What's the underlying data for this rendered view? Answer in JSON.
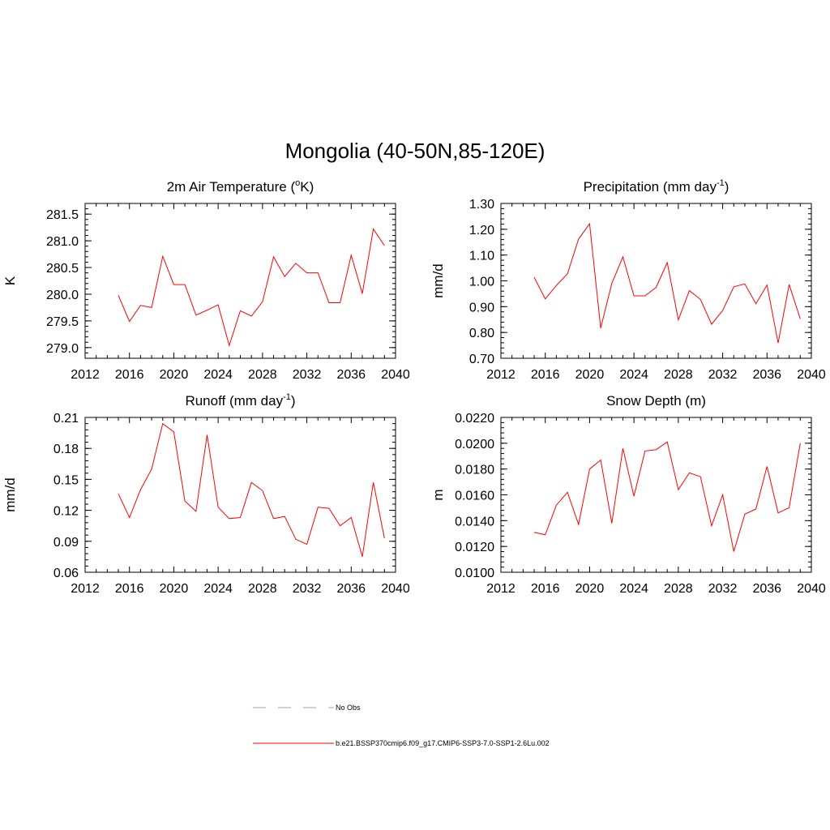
{
  "figure_title": "Mongolia (40-50N,85-120E)",
  "legend": {
    "items": [
      {
        "label": "No Obs",
        "color": "#9999dd",
        "dash": true
      },
      {
        "label": "b.e21.BSSP370cmip6.f09_g17.CMIP6-SSP3-7.0-SSP1-2.6Lu.002",
        "color": "#ff0000",
        "dash": false
      }
    ]
  },
  "chart_data": [
    {
      "type": "line",
      "title": "2m Air Temperature (°K)",
      "title_parts": {
        "main": "2m Air Temperature (",
        "sup": "o",
        "tail": "K)"
      },
      "ylabel": "K",
      "xlim": [
        2012,
        2040
      ],
      "ylim": [
        278.8,
        281.7
      ],
      "xticks": [
        2012,
        2016,
        2020,
        2024,
        2028,
        2032,
        2036,
        2040
      ],
      "xtick_labels": [
        "2012",
        "2016",
        "2020",
        "2024",
        "2028",
        "2032",
        "2036",
        "2040"
      ],
      "yticks": [
        279.0,
        279.5,
        280.0,
        280.5,
        281.0,
        281.5
      ],
      "ytick_labels": [
        "279.0",
        "279.5",
        "280.0",
        "280.5",
        "281.0",
        "281.5"
      ],
      "series": [
        {
          "color": "#ff0000",
          "x": [
            2015,
            2016,
            2017,
            2018,
            2019,
            2020,
            2021,
            2022,
            2023,
            2024,
            2025,
            2026,
            2027,
            2028,
            2029,
            2030,
            2031,
            2032,
            2033,
            2034,
            2035,
            2036,
            2037,
            2038,
            2039
          ],
          "values": [
            279.98,
            279.49,
            279.79,
            279.75,
            280.71,
            280.18,
            280.18,
            279.61,
            279.7,
            279.8,
            279.04,
            279.69,
            279.59,
            279.86,
            280.7,
            280.33,
            280.58,
            280.4,
            280.4,
            279.84,
            279.84,
            280.73,
            280.01,
            281.22,
            280.91
          ]
        }
      ]
    },
    {
      "type": "line",
      "title": "Precipitation (mm day-1)",
      "title_parts": {
        "main": "Precipitation (mm day",
        "sup": "-1",
        "tail": ")"
      },
      "ylabel": "mm/d",
      "xlim": [
        2012,
        2040
      ],
      "ylim": [
        0.7,
        1.3
      ],
      "xticks": [
        2012,
        2016,
        2020,
        2024,
        2028,
        2032,
        2036,
        2040
      ],
      "xtick_labels": [
        "2012",
        "2016",
        "2020",
        "2024",
        "2028",
        "2032",
        "2036",
        "2040"
      ],
      "yticks": [
        0.7,
        0.8,
        0.9,
        1.0,
        1.1,
        1.2,
        1.3
      ],
      "ytick_labels": [
        "0.70",
        "0.80",
        "0.90",
        "1.00",
        "1.10",
        "1.20",
        "1.30"
      ],
      "series": [
        {
          "color": "#ff0000",
          "x": [
            2015,
            2016,
            2017,
            2018,
            2019,
            2020,
            2021,
            2022,
            2023,
            2024,
            2025,
            2026,
            2027,
            2028,
            2029,
            2030,
            2031,
            2032,
            2033,
            2034,
            2035,
            2036,
            2037,
            2038,
            2039
          ],
          "values": [
            1.014,
            0.93,
            0.982,
            1.027,
            1.162,
            1.221,
            0.817,
            0.99,
            1.093,
            0.942,
            0.942,
            0.975,
            1.071,
            0.849,
            0.962,
            0.928,
            0.832,
            0.885,
            0.977,
            0.988,
            0.911,
            0.984,
            0.759,
            0.986,
            0.853
          ]
        }
      ]
    },
    {
      "type": "line",
      "title": "Runoff (mm day-1)",
      "title_parts": {
        "main": "Runoff (mm day",
        "sup": "-1",
        "tail": ")"
      },
      "ylabel": "mm/d",
      "xlim": [
        2012,
        2040
      ],
      "ylim": [
        0.06,
        0.21
      ],
      "xticks": [
        2012,
        2016,
        2020,
        2024,
        2028,
        2032,
        2036,
        2040
      ],
      "xtick_labels": [
        "2012",
        "2016",
        "2020",
        "2024",
        "2028",
        "2032",
        "2036",
        "2040"
      ],
      "yticks": [
        0.06,
        0.09,
        0.12,
        0.15,
        0.18,
        0.21
      ],
      "ytick_labels": [
        "0.06",
        "0.09",
        "0.12",
        "0.15",
        "0.18",
        "0.21"
      ],
      "series": [
        {
          "color": "#ff0000",
          "x": [
            2015,
            2016,
            2017,
            2018,
            2019,
            2020,
            2021,
            2022,
            2023,
            2024,
            2025,
            2026,
            2027,
            2028,
            2029,
            2030,
            2031,
            2032,
            2033,
            2034,
            2035,
            2036,
            2037,
            2038,
            2039
          ],
          "values": [
            0.136,
            0.113,
            0.14,
            0.16,
            0.204,
            0.196,
            0.129,
            0.119,
            0.193,
            0.123,
            0.112,
            0.113,
            0.147,
            0.139,
            0.112,
            0.114,
            0.092,
            0.087,
            0.123,
            0.122,
            0.105,
            0.113,
            0.075,
            0.147,
            0.093
          ]
        }
      ]
    },
    {
      "type": "line",
      "title": "Snow Depth (m)",
      "title_parts": {
        "main": "Snow Depth (m)",
        "sup": "",
        "tail": ""
      },
      "ylabel": "m",
      "xlim": [
        2012,
        2040
      ],
      "ylim": [
        0.01,
        0.022
      ],
      "xticks": [
        2012,
        2016,
        2020,
        2024,
        2028,
        2032,
        2036,
        2040
      ],
      "xtick_labels": [
        "2012",
        "2016",
        "2020",
        "2024",
        "2028",
        "2032",
        "2036",
        "2040"
      ],
      "yticks": [
        0.01,
        0.012,
        0.014,
        0.016,
        0.018,
        0.02,
        0.022
      ],
      "ytick_labels": [
        "0.0100",
        "0.0120",
        "0.0140",
        "0.0160",
        "0.0180",
        "0.0200",
        "0.0220"
      ],
      "series": [
        {
          "color": "#ff0000",
          "x": [
            2015,
            2016,
            2017,
            2018,
            2019,
            2020,
            2021,
            2022,
            2023,
            2024,
            2025,
            2026,
            2027,
            2028,
            2029,
            2030,
            2031,
            2032,
            2033,
            2034,
            2035,
            2036,
            2037,
            2038,
            2039
          ],
          "values": [
            0.0131,
            0.0129,
            0.0152,
            0.0162,
            0.0137,
            0.018,
            0.0187,
            0.0138,
            0.0196,
            0.0159,
            0.0194,
            0.0195,
            0.0201,
            0.0164,
            0.0177,
            0.0174,
            0.0136,
            0.016,
            0.0116,
            0.0145,
            0.0149,
            0.0182,
            0.0146,
            0.015,
            0.02
          ]
        }
      ]
    }
  ]
}
